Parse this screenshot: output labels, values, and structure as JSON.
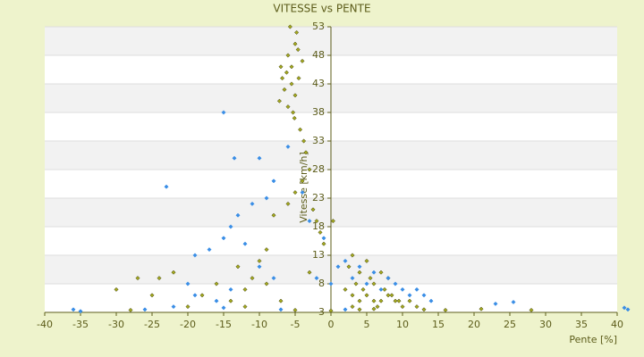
{
  "chart_data": {
    "type": "scatter",
    "title": "VITESSE vs PENTE",
    "x_label": "Pente [%]",
    "y_label": "Vitesse [km/h]",
    "xlim": [
      -40,
      40
    ],
    "ylim": [
      3,
      53
    ],
    "xticks": [
      -40,
      -35,
      -30,
      -25,
      -20,
      -15,
      -10,
      -5,
      0,
      5,
      10,
      15,
      20,
      25,
      30,
      35,
      40
    ],
    "yticks": [
      3,
      8,
      13,
      18,
      23,
      28,
      33,
      38,
      43,
      48,
      53
    ],
    "grid": true,
    "series": [
      {
        "color": "#a3a81f",
        "x": [
          -6,
          -5.5,
          -5,
          -4.5,
          -6.5,
          -7,
          -5,
          -4,
          -6,
          -5.5,
          -4.8,
          -6.2,
          -7.2,
          -5.1,
          -4.3,
          -3.8,
          -6.8,
          -5.7,
          -4.6,
          -5.3,
          -3.5,
          -3,
          -4,
          -5,
          -6,
          -2.5,
          -2,
          -1.5,
          -1,
          -8,
          -9,
          -10,
          -11,
          -12,
          -13,
          -14,
          -16,
          -18,
          -20,
          -22,
          -24,
          -25,
          -27,
          -30,
          -28,
          -12,
          -9,
          -7,
          -5,
          -3,
          2,
          3,
          4,
          5,
          6,
          7,
          8,
          9,
          10,
          11,
          12,
          3.5,
          4.5,
          5.5,
          6.5,
          7.5,
          8.5,
          9.5,
          2.5,
          3,
          4,
          5,
          6,
          7,
          8,
          3,
          4,
          6,
          13,
          16,
          21,
          28,
          0,
          0.3
        ],
        "values": [
          48,
          46,
          50,
          44,
          42,
          46,
          41,
          47,
          39,
          43,
          52,
          45,
          40,
          37,
          35,
          33,
          44,
          53,
          49,
          38,
          31,
          28,
          26,
          24,
          22,
          21,
          19,
          17,
          15,
          20,
          14,
          12,
          9,
          7,
          11,
          5,
          8,
          6,
          4,
          10,
          9,
          6,
          9,
          7,
          3.4,
          4,
          8,
          5,
          3.4,
          10,
          7,
          6,
          5,
          6,
          5,
          5,
          6,
          5,
          4,
          5,
          4,
          8,
          7,
          9,
          4,
          7,
          6,
          5,
          11,
          13,
          10,
          12,
          8,
          10,
          9,
          4,
          3.5,
          3.6,
          3.5,
          3.4,
          3.6,
          3.4,
          3.3,
          19
        ]
      },
      {
        "color": "#3a8ee6",
        "x": [
          -36,
          -35,
          -15,
          -13.5,
          -10,
          -23,
          -8,
          -9,
          -11,
          -13,
          -14,
          -15,
          -17,
          -19,
          -12,
          -10,
          -8,
          -14,
          -16,
          -20,
          -22,
          -26,
          -6,
          -4,
          -3,
          -1,
          1,
          2,
          3,
          4,
          5,
          6,
          7,
          8,
          9,
          10,
          11,
          12,
          13,
          14,
          23,
          25.5,
          41.5,
          41,
          2,
          -15,
          -19,
          -7,
          -2,
          0
        ],
        "values": [
          3.5,
          3.2,
          38,
          30,
          30,
          25,
          26,
          23,
          22,
          20,
          18,
          16,
          14,
          13,
          15,
          11,
          9,
          7,
          5,
          8,
          4,
          3.5,
          32,
          24,
          19,
          16,
          11,
          12,
          9,
          11,
          8,
          10,
          7,
          9,
          8,
          7,
          6,
          7,
          6,
          5,
          4.5,
          4.8,
          3.5,
          3.8,
          3.5,
          3.8,
          6,
          3.5,
          9,
          8
        ]
      }
    ]
  }
}
